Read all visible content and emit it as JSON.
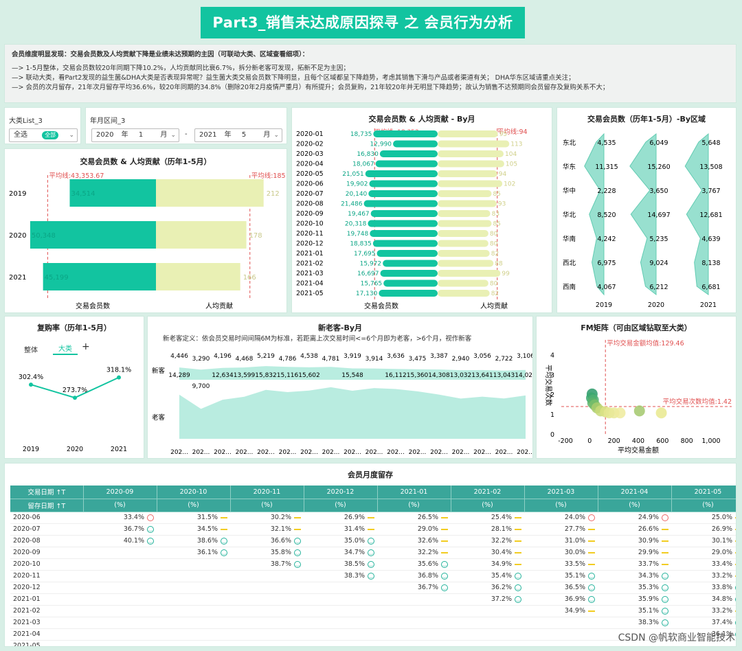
{
  "title": "Part3_销售未达成原因探寻 之 会员行为分析",
  "findings": {
    "heading": "会员维度明显发现：交易会员数及人均贡献下降是业绩未达预期的主因（可联动大类、区域查看细项）：",
    "lines": [
      "—> 1-5月整体，交易会员数较20年同期下降10.2%，人均贡献同比衰6.7%，拆分新老客可发现，拓新不足为主因；",
      "—> 联动大类，看Part2发现的益生菌&DHA大类是否表现异常呢？益生菌大类交易会员数下降明显，且每个区域都呈下降趋势，考虑其销售下滑与产品或者渠道有关；  DHA华东区域请重点关注；",
      "—> 会员的次月留存，21年次月留存平均36.6%，较20年同期的34.8%（删除20年2月疫情严重月）有所提升；会员复购，21年较20年并无明显下降趋势；故认为销售不达预期同会员留存及复购关系不大；"
    ]
  },
  "filters": {
    "category_label": "大类List_3",
    "category_value": "全选",
    "category_badge": "全部",
    "range_label": "年月区间_3",
    "start_year": "2020",
    "start_month": "1",
    "end_year": "2021",
    "end_month": "5",
    "year_unit": "年",
    "month_unit": "月",
    "sep": "-"
  },
  "annual": {
    "title": "交易会员数 & 人均贡献（历年1-5月）",
    "avg_members_label": "平均线:43,353.67",
    "avg_contrib_label": "平均线:185",
    "avg_members": 43353.67,
    "avg_contrib": 185,
    "years": [
      "2019",
      "2020",
      "2021"
    ],
    "members": [
      34514,
      50348,
      45199
    ],
    "members_labels": [
      "34,514",
      "50,348",
      "45,199"
    ],
    "contrib": [
      212,
      178,
      166
    ],
    "contrib_labels": [
      "212",
      "178",
      "166"
    ],
    "xlabel_members": "交易会员数",
    "xlabel_contrib": "人均贡献"
  },
  "monthly": {
    "title": "交易会员数 & 人均贡献 - By月",
    "avg_members_label": "平均线: 18,353",
    "avg_contrib_label": "平均线:94",
    "avg_members": 18353,
    "avg_contrib": 94,
    "months": [
      "2020-01",
      "2020-02",
      "2020-03",
      "2020-04",
      "2020-05",
      "2020-06",
      "2020-07",
      "2020-08",
      "2020-09",
      "2020-10",
      "2020-11",
      "2020-12",
      "2021-01",
      "2021-02",
      "2021-03",
      "2021-04",
      "2021-05"
    ],
    "members": [
      18735,
      12990,
      16830,
      18067,
      21051,
      19902,
      20140,
      21486,
      19467,
      20318,
      19748,
      18835,
      17695,
      15972,
      16697,
      15765,
      17130
    ],
    "members_labels": [
      "18,735",
      "12,990",
      "16,830",
      "18,067",
      "21,051",
      "19,902",
      "20,140",
      "21,486",
      "19,467",
      "20,318",
      "19,748",
      "18,835",
      "17,695",
      "15,972",
      "16,697",
      "15,765",
      "17,130"
    ],
    "contrib": [
      95,
      113,
      104,
      105,
      94,
      102,
      85,
      93,
      83,
      85,
      80,
      80,
      82,
      88,
      99,
      80,
      82
    ],
    "xlabel_members": "交易会员数",
    "xlabel_contrib": "人均贡献"
  },
  "region": {
    "title": "交易会员数（历年1-5月）-By区域",
    "regions": [
      "东北",
      "华东",
      "华中",
      "华北",
      "华南",
      "西北",
      "西南"
    ],
    "years": [
      "2019",
      "2020",
      "2021"
    ],
    "values": [
      [
        4535,
        11315,
        2228,
        8520,
        4242,
        6975,
        4067
      ],
      [
        6049,
        15260,
        3650,
        14697,
        5235,
        9024,
        6212
      ],
      [
        5648,
        13508,
        3767,
        12681,
        4639,
        8138,
        6681
      ]
    ],
    "labels": [
      [
        "4,535",
        "11,315",
        "2,228",
        "8,520",
        "4,242",
        "6,975",
        "4,067"
      ],
      [
        "6,049",
        "15,260",
        "3,650",
        "14,697",
        "5,235",
        "9,024",
        "6,212"
      ],
      [
        "5,648",
        "13,508",
        "3,767",
        "12,681",
        "4,639",
        "8,138",
        "6,681"
      ]
    ]
  },
  "repurchase": {
    "title": "复购率（历年1-5月）",
    "tabs": [
      "整体",
      "大类",
      "+"
    ],
    "years": [
      "2019",
      "2020",
      "2021"
    ],
    "values": [
      302.4,
      273.7,
      318.1
    ],
    "labels": [
      "302.4%",
      "273.7%",
      "318.1%"
    ]
  },
  "newold": {
    "title": "新老客-By月",
    "definition": "新老客定义：依会员交易时间间隔6M为标准，若距离上次交易时间<=6个月即为老客，>6个月，视作新客",
    "new_label": "新客",
    "old_label": "老客",
    "new": [
      4446,
      3290,
      4196,
      4468,
      5219,
      4786,
      4538,
      4781,
      3919,
      3914,
      3636,
      3475,
      3387,
      2940,
      3056,
      2722,
      3106
    ],
    "new_labels": [
      "4,446",
      "3,290",
      "4,196",
      "4,468",
      "5,219",
      "4,786",
      "4,538",
      "4,781",
      "3,919",
      "3,914",
      "3,636",
      "3,475",
      "3,387",
      "2,940",
      "3,056",
      "2,722",
      "3,106"
    ],
    "old": [
      14289,
      9700,
      12634,
      13599,
      15832,
      15116,
      15602,
      16705,
      15548,
      16404,
      16112,
      15360,
      14308,
      13032,
      13641,
      13043,
      14024
    ],
    "old_labels": [
      "14,289",
      "9,700",
      "12,634",
      "13,599",
      "15,832",
      "15,116",
      "15,602",
      "",
      "15,548",
      "",
      "16,112",
      "15,360",
      "14,308",
      "13,032",
      "13,641",
      "13,043",
      "14,024"
    ],
    "xtick": "202..."
  },
  "fm": {
    "title": "FM矩阵（可由区域钻取至大类）",
    "avg_amount_label": "平均交易金额均值:129.46",
    "avg_freq_label": "平均交易次数均值:1.42",
    "avg_amount": 129.46,
    "avg_freq": 1.42,
    "xlabel": "平均交易金额",
    "ylabel": "平均交易次数",
    "xticks": [
      "-200",
      "0",
      "200",
      "400",
      "600",
      "800",
      "1,000"
    ],
    "yticks": [
      "0",
      "1",
      "2",
      "3",
      "4"
    ],
    "points": [
      [
        20,
        2.05,
        "#2c9a6a"
      ],
      [
        15,
        1.85,
        "#3aa86e"
      ],
      [
        30,
        1.75,
        "#4fb073"
      ],
      [
        25,
        1.6,
        "#5ab36c"
      ],
      [
        40,
        1.5,
        "#79bd6a"
      ],
      [
        60,
        1.35,
        "#a9cc6c"
      ],
      [
        90,
        1.2,
        "#c8d978"
      ],
      [
        130,
        1.15,
        "#dbe285"
      ],
      [
        160,
        1.1,
        "#e4e690"
      ],
      [
        200,
        1.1,
        "#e9e998"
      ],
      [
        250,
        1.1,
        "#eeeb9c"
      ],
      [
        410,
        1.2,
        "#a3c86c"
      ],
      [
        590,
        1.1,
        "#e9e98e"
      ]
    ]
  },
  "retention": {
    "title": "会员月度留存",
    "row_header1": "交易日期",
    "row_header2": "留存日期",
    "sort_icon": "↑T",
    "cols": [
      "2020-09",
      "2020-10",
      "2020-11",
      "2020-12",
      "2021-01",
      "2021-02",
      "2021-03",
      "2021-04",
      "2021-05"
    ],
    "sub": "(%)",
    "rows": [
      {
        "label": "2020-06",
        "cells": [
          "33.4%",
          "31.5%",
          "30.2%",
          "26.9%",
          "26.5%",
          "25.4%",
          "24.0%",
          "24.9%",
          "25.0%"
        ]
      },
      {
        "label": "2020-07",
        "cells": [
          "36.7%",
          "34.5%",
          "32.1%",
          "31.4%",
          "29.0%",
          "28.1%",
          "27.7%",
          "26.6%",
          "26.9%"
        ]
      },
      {
        "label": "2020-08",
        "cells": [
          "40.1%",
          "38.6%",
          "36.6%",
          "35.0%",
          "32.6%",
          "32.2%",
          "31.0%",
          "30.9%",
          "30.1%"
        ]
      },
      {
        "label": "2020-09",
        "cells": [
          "",
          "36.1%",
          "35.8%",
          "34.7%",
          "32.2%",
          "30.4%",
          "30.0%",
          "29.9%",
          "29.0%"
        ]
      },
      {
        "label": "2020-10",
        "cells": [
          "",
          "",
          "38.7%",
          "38.5%",
          "35.6%",
          "34.9%",
          "33.5%",
          "33.7%",
          "33.4%"
        ]
      },
      {
        "label": "2020-11",
        "cells": [
          "",
          "",
          "",
          "38.3%",
          "36.8%",
          "35.4%",
          "35.1%",
          "34.3%",
          "33.2%"
        ]
      },
      {
        "label": "2020-12",
        "cells": [
          "",
          "",
          "",
          "",
          "36.7%",
          "36.2%",
          "36.5%",
          "35.3%",
          "33.8%"
        ]
      },
      {
        "label": "2021-01",
        "cells": [
          "",
          "",
          "",
          "",
          "",
          "37.2%",
          "36.9%",
          "35.9%",
          "34.8%"
        ]
      },
      {
        "label": "2021-02",
        "cells": [
          "",
          "",
          "",
          "",
          "",
          "",
          "34.9%",
          "35.1%",
          "33.2%"
        ]
      },
      {
        "label": "2021-03",
        "cells": [
          "",
          "",
          "",
          "",
          "",
          "",
          "",
          "38.3%",
          "37.4%"
        ]
      },
      {
        "label": "2021-04",
        "cells": [
          "",
          "",
          "",
          "",
          "",
          "",
          "",
          "",
          "36.1%"
        ]
      },
      {
        "label": "2021-05",
        "cells": [
          "",
          "",
          "",
          "",
          "",
          "",
          "",
          "",
          ""
        ]
      }
    ],
    "icons": [
      [
        "frown",
        "dash",
        "dash",
        "dash",
        "dash",
        "dash",
        "frown",
        "frown",
        "dash"
      ],
      [
        "smile",
        "dash",
        "dash",
        "dash",
        "dash",
        "dash",
        "dash",
        "dash",
        "dash"
      ],
      [
        "smile",
        "smile",
        "smile",
        "smile",
        "dash",
        "dash",
        "dash",
        "dash",
        "dash"
      ],
      [
        "",
        "smile",
        "smile",
        "smile",
        "dash",
        "dash",
        "dash",
        "dash",
        "dash"
      ],
      [
        "",
        "",
        "smile",
        "smile",
        "smile",
        "dash",
        "dash",
        "dash",
        "dash"
      ],
      [
        "",
        "",
        "",
        "smile",
        "smile",
        "smile",
        "smile",
        "smile",
        "dash"
      ],
      [
        "",
        "",
        "",
        "",
        "smile",
        "smile",
        "smile",
        "smile",
        "smile"
      ],
      [
        "",
        "",
        "",
        "",
        "",
        "smile",
        "smile",
        "smile",
        "smile"
      ],
      [
        "",
        "",
        "",
        "",
        "",
        "",
        "dash",
        "smile",
        "dash"
      ],
      [
        "",
        "",
        "",
        "",
        "",
        "",
        "",
        "smile",
        "smile"
      ],
      [
        "",
        "",
        "",
        "",
        "",
        "",
        "",
        "",
        "smile"
      ],
      [
        "",
        "",
        "",
        "",
        "",
        "",
        "",
        "",
        ""
      ]
    ]
  },
  "watermark": "CSDN @帆软商业智能技术",
  "colors": {
    "teal": "#12c4a0",
    "pale": "#e9f0b4",
    "red": "#e05050",
    "header": "#3aa69a"
  }
}
